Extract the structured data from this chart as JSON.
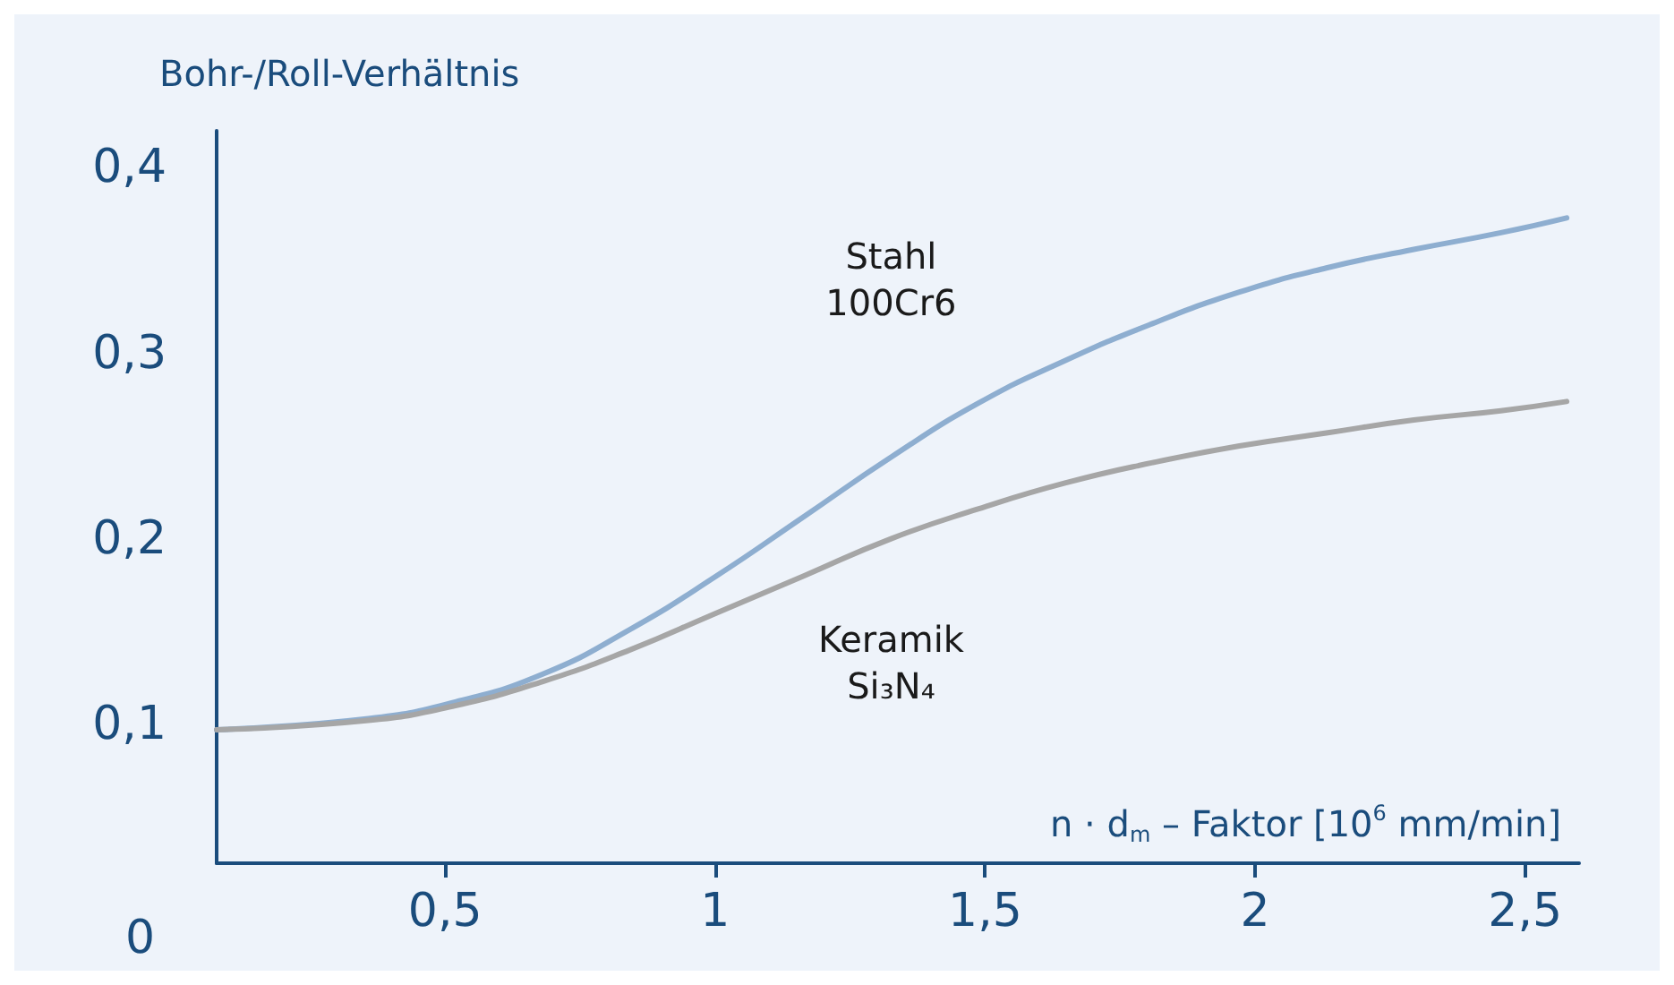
{
  "chart_data": {
    "type": "line",
    "xlabel": "n · d$_{m}$ – Faktor [10$^{6}$ mm/min]",
    "ylabel": "Bohr-/Roll-Verhältnis",
    "x": [
      0.077,
      0.358,
      0.519,
      0.681,
      0.842,
      1.003,
      1.165,
      1.326,
      1.487,
      1.648,
      1.81,
      1.971,
      2.132,
      2.294,
      2.455,
      2.577
    ],
    "series": [
      {
        "name": "Stahl\n100Cr6",
        "color": "#8eaed0",
        "values": [
          0.097,
          0.103,
          0.112,
          0.127,
          0.151,
          0.18,
          0.212,
          0.244,
          0.273,
          0.296,
          0.316,
          0.333,
          0.346,
          0.356,
          0.365,
          0.373
        ]
      },
      {
        "name": "Keramik\nSi₃N₄",
        "color": "#a6a6a6",
        "values": [
          0.097,
          0.102,
          0.11,
          0.123,
          0.14,
          0.16,
          0.18,
          0.2,
          0.216,
          0.23,
          0.241,
          0.25,
          0.257,
          0.264,
          0.269,
          0.274
        ]
      }
    ],
    "xlim": [
      0.077,
      2.6
    ],
    "ylim": [
      0.025,
      0.42
    ],
    "xticks": [
      {
        "value": 0.5,
        "label": "0,5"
      },
      {
        "value": 1,
        "label": "1"
      },
      {
        "value": 1.5,
        "label": "1,5"
      },
      {
        "value": 2,
        "label": "2"
      },
      {
        "value": 2.5,
        "label": "2,5"
      }
    ],
    "yticks": [
      {
        "value": 0.1,
        "label": "0,1"
      },
      {
        "value": 0.2,
        "label": "0,2"
      },
      {
        "value": 0.3,
        "label": "0,3"
      },
      {
        "value": 0.4,
        "label": "0,4"
      }
    ],
    "annotations": [
      "0"
    ],
    "grid": false,
    "legend": false,
    "marker": "none",
    "line_style": "solid"
  }
}
